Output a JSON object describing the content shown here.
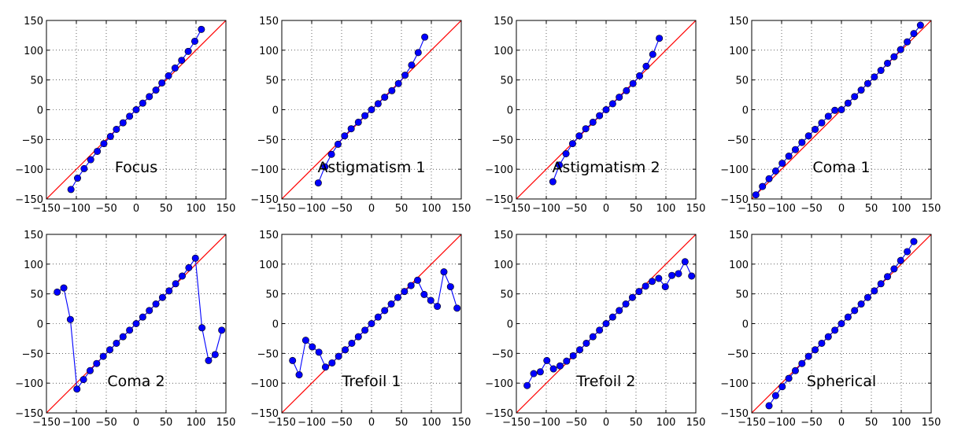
{
  "chart_data": [
    {
      "type": "line",
      "title": "Focus",
      "xlim": [
        -150,
        150
      ],
      "ylim": [
        -150,
        150
      ],
      "xticks": [
        -150,
        -100,
        -50,
        0,
        50,
        100,
        150
      ],
      "yticks": [
        -150,
        -100,
        -50,
        0,
        50,
        100,
        150
      ],
      "grid": true,
      "colors": {
        "reference": "#ff0000",
        "series": "#0000ff"
      },
      "reference_line": {
        "x": [
          -150,
          150
        ],
        "y": [
          -150,
          150
        ]
      },
      "series": [
        {
          "x": [
            -109,
            -98,
            -87,
            -76,
            -65,
            -54,
            -43,
            -33,
            -22,
            -11,
            0,
            11,
            22,
            33,
            43,
            54,
            65,
            76,
            87,
            98,
            109
          ],
          "y": [
            -134,
            -115,
            -99,
            -84,
            -70,
            -57,
            -45,
            -33,
            -22,
            -11,
            0,
            11,
            22,
            33,
            45,
            57,
            70,
            83,
            98,
            115,
            135
          ]
        }
      ]
    },
    {
      "type": "line",
      "title": "Astigmatism 1",
      "xlim": [
        -150,
        150
      ],
      "ylim": [
        -150,
        150
      ],
      "xticks": [
        -150,
        -100,
        -50,
        0,
        50,
        100,
        150
      ],
      "yticks": [
        -150,
        -100,
        -50,
        0,
        50,
        100,
        150
      ],
      "grid": true,
      "colors": {
        "reference": "#ff0000",
        "series": "#0000ff"
      },
      "reference_line": {
        "x": [
          -150,
          150
        ],
        "y": [
          -150,
          150
        ]
      },
      "series": [
        {
          "x": [
            -89,
            -78,
            -67,
            -56,
            -45,
            -34,
            -22,
            -11,
            0,
            11,
            22,
            34,
            45,
            56,
            67,
            78,
            89
          ],
          "y": [
            -123,
            -96,
            -75,
            -58,
            -44,
            -32,
            -21,
            -10,
            0,
            10,
            21,
            32,
            44,
            58,
            75,
            96,
            122
          ]
        }
      ]
    },
    {
      "type": "line",
      "title": "Astigmatism 2",
      "xlim": [
        -150,
        150
      ],
      "ylim": [
        -150,
        150
      ],
      "xticks": [
        -150,
        -100,
        -50,
        0,
        50,
        100,
        150
      ],
      "yticks": [
        -150,
        -100,
        -50,
        0,
        50,
        100,
        150
      ],
      "grid": true,
      "colors": {
        "reference": "#ff0000",
        "series": "#0000ff"
      },
      "reference_line": {
        "x": [
          -150,
          150
        ],
        "y": [
          -150,
          150
        ]
      },
      "series": [
        {
          "x": [
            -89,
            -78,
            -67,
            -56,
            -45,
            -34,
            -22,
            -11,
            0,
            11,
            22,
            34,
            45,
            56,
            67,
            78,
            89
          ],
          "y": [
            -121,
            -93,
            -74,
            -57,
            -44,
            -32,
            -21,
            -10,
            0,
            10,
            21,
            32,
            44,
            57,
            73,
            93,
            120
          ]
        }
      ]
    },
    {
      "type": "line",
      "title": "Coma 1",
      "xlim": [
        -150,
        150
      ],
      "ylim": [
        -150,
        150
      ],
      "xticks": [
        -150,
        -100,
        -50,
        0,
        50,
        100,
        150
      ],
      "yticks": [
        -150,
        -100,
        -50,
        0,
        50,
        100,
        150
      ],
      "grid": true,
      "colors": {
        "reference": "#ff0000",
        "series": "#0000ff"
      },
      "reference_line": {
        "x": [
          -150,
          150
        ],
        "y": [
          -150,
          150
        ]
      },
      "series": [
        {
          "x": [
            -143,
            -132,
            -121,
            -110,
            -99,
            -88,
            -77,
            -66,
            -55,
            -44,
            -33,
            -22,
            -11,
            0,
            11,
            22,
            33,
            44,
            55,
            66,
            77,
            88,
            99,
            110,
            121,
            132
          ],
          "y": [
            -143,
            -129,
            -116,
            -103,
            -90,
            -78,
            -67,
            -55,
            -44,
            -33,
            -22,
            -11,
            -1,
            0,
            11,
            22,
            33,
            44,
            55,
            66,
            78,
            89,
            101,
            114,
            128,
            142
          ]
        }
      ]
    },
    {
      "type": "line",
      "title": "Coma 2",
      "xlim": [
        -150,
        150
      ],
      "ylim": [
        -150,
        150
      ],
      "xticks": [
        -150,
        -100,
        -50,
        0,
        50,
        100,
        150
      ],
      "yticks": [
        -150,
        -100,
        -50,
        0,
        50,
        100,
        150
      ],
      "grid": true,
      "colors": {
        "reference": "#ff0000",
        "series": "#0000ff"
      },
      "reference_line": {
        "x": [
          -150,
          150
        ],
        "y": [
          -150,
          150
        ]
      },
      "series": [
        {
          "x": [
            -132,
            -121,
            -110,
            -99,
            -88,
            -77,
            -66,
            -55,
            -44,
            -33,
            -22,
            -11,
            0,
            11,
            22,
            33,
            44,
            55,
            66,
            77,
            88,
            99,
            110,
            121,
            132,
            143
          ],
          "y": [
            53,
            60,
            7,
            -110,
            -94,
            -79,
            -67,
            -55,
            -44,
            -33,
            -22,
            -11,
            0,
            11,
            22,
            33,
            44,
            55,
            67,
            80,
            94,
            110,
            -7,
            -62,
            -52,
            -11
          ]
        }
      ]
    },
    {
      "type": "line",
      "title": "Trefoil 1",
      "xlim": [
        -150,
        150
      ],
      "ylim": [
        -150,
        150
      ],
      "xticks": [
        -150,
        -100,
        -50,
        0,
        50,
        100,
        150
      ],
      "yticks": [
        -150,
        -100,
        -50,
        0,
        50,
        100,
        150
      ],
      "grid": true,
      "colors": {
        "reference": "#ff0000",
        "series": "#0000ff"
      },
      "reference_line": {
        "x": [
          -150,
          150
        ],
        "y": [
          -150,
          150
        ]
      },
      "series": [
        {
          "x": [
            -132,
            -121,
            -110,
            -99,
            -88,
            -77,
            -66,
            -55,
            -44,
            -33,
            -22,
            -11,
            0,
            11,
            22,
            33,
            44,
            55,
            66,
            77,
            88,
            99,
            110,
            121,
            132,
            143
          ],
          "y": [
            -62,
            -86,
            -28,
            -39,
            -48,
            -73,
            -66,
            -55,
            -44,
            -33,
            -22,
            -11,
            0,
            11,
            22,
            33,
            44,
            54,
            64,
            73,
            49,
            39,
            29,
            87,
            62,
            26
          ]
        }
      ]
    },
    {
      "type": "line",
      "title": "Trefoil 2",
      "xlim": [
        -150,
        150
      ],
      "ylim": [
        -150,
        150
      ],
      "xticks": [
        -150,
        -100,
        -50,
        0,
        50,
        100,
        150
      ],
      "yticks": [
        -150,
        -100,
        -50,
        0,
        50,
        100,
        150
      ],
      "grid": true,
      "colors": {
        "reference": "#ff0000",
        "series": "#0000ff"
      },
      "reference_line": {
        "x": [
          -150,
          150
        ],
        "y": [
          -150,
          150
        ]
      },
      "series": [
        {
          "x": [
            -132,
            -121,
            -110,
            -99,
            -88,
            -77,
            -66,
            -55,
            -44,
            -33,
            -22,
            -11,
            0,
            11,
            22,
            33,
            44,
            55,
            66,
            77,
            88,
            99,
            110,
            121,
            132,
            143
          ],
          "y": [
            -104,
            -84,
            -81,
            -62,
            -76,
            -71,
            -63,
            -54,
            -44,
            -33,
            -22,
            -11,
            0,
            11,
            22,
            33,
            44,
            54,
            63,
            71,
            76,
            62,
            81,
            84,
            104,
            80
          ]
        }
      ]
    },
    {
      "type": "line",
      "title": "Spherical",
      "xlim": [
        -150,
        150
      ],
      "ylim": [
        -150,
        150
      ],
      "xticks": [
        -150,
        -100,
        -50,
        0,
        50,
        100,
        150
      ],
      "yticks": [
        -150,
        -100,
        -50,
        0,
        50,
        100,
        150
      ],
      "grid": true,
      "colors": {
        "reference": "#ff0000",
        "series": "#0000ff"
      },
      "reference_line": {
        "x": [
          -150,
          150
        ],
        "y": [
          -150,
          150
        ]
      },
      "series": [
        {
          "x": [
            -121,
            -110,
            -99,
            -88,
            -77,
            -66,
            -55,
            -44,
            -33,
            -22,
            -11,
            0,
            11,
            22,
            33,
            44,
            55,
            66,
            77,
            88,
            99,
            110,
            121
          ],
          "y": [
            -138,
            -121,
            -106,
            -92,
            -79,
            -67,
            -55,
            -44,
            -33,
            -22,
            -11,
            0,
            11,
            22,
            33,
            44,
            55,
            67,
            79,
            92,
            106,
            121,
            138
          ]
        }
      ]
    }
  ]
}
